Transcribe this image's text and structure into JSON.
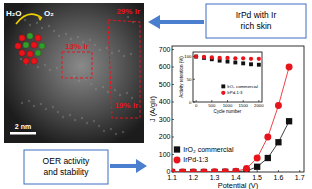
{
  "chart_data": [
    {
      "type": "line",
      "x_label": "Potential (V)",
      "y_label": "J (A/gIr)",
      "x": [
        1.1,
        1.15,
        1.2,
        1.25,
        1.3,
        1.35,
        1.4,
        1.45,
        1.5,
        1.55,
        1.6,
        1.65
      ],
      "series": [
        {
          "name": "IrO₂ commercial",
          "color": "#111111",
          "marker": "square",
          "values": [
            0,
            0,
            0,
            0,
            0,
            1,
            2,
            6,
            30,
            80,
            170,
            290
          ]
        },
        {
          "name": "IrPd-1:3",
          "color": "#e8141b",
          "marker": "circle",
          "values": [
            0,
            0,
            0,
            0,
            1,
            1,
            4,
            20,
            80,
            200,
            380,
            600
          ]
        }
      ],
      "xlim": [
        1.1,
        1.72
      ],
      "xticks": [
        1.1,
        1.2,
        1.3,
        1.4,
        1.5,
        1.6,
        1.7
      ],
      "ylim": [
        0,
        720
      ],
      "yticks": [
        0,
        100,
        200,
        300,
        400,
        500,
        600,
        700
      ],
      "legend": "lower left"
    },
    {
      "type": "scatter",
      "x_label": "Cycle number",
      "y_label": "Activity retention (%)",
      "x": [
        0,
        250,
        500,
        750,
        1000,
        1250,
        1500,
        1750,
        2000
      ],
      "series": [
        {
          "name": "IrO₂ commercial",
          "color": "#111111",
          "marker": "square",
          "values": [
            100,
            97,
            94,
            91,
            89,
            87,
            85,
            83,
            82
          ]
        },
        {
          "name": "IrPd-1:3",
          "color": "#e8141b",
          "marker": "circle",
          "values": [
            100,
            99,
            98,
            97,
            97,
            96,
            96,
            95,
            95
          ]
        }
      ],
      "xlim": [
        -100,
        2100
      ],
      "xticks": [
        0,
        500,
        1000,
        1500,
        2000
      ],
      "ylim": [
        0,
        110
      ],
      "yticks": [
        0,
        50,
        100
      ],
      "legend": "lower right"
    }
  ],
  "panel": {
    "image_labels": [
      {
        "text": "H₂O"
      },
      {
        "text": "O₂"
      },
      {
        "text": "29% Ir"
      },
      {
        "text": "13% Ir"
      },
      {
        "text": "19% Ir"
      },
      {
        "text": "2 nm"
      }
    ],
    "boxes": [
      {
        "text": "IrPd with Ir rich skin"
      },
      {
        "text": "OER activity and stability"
      }
    ]
  }
}
